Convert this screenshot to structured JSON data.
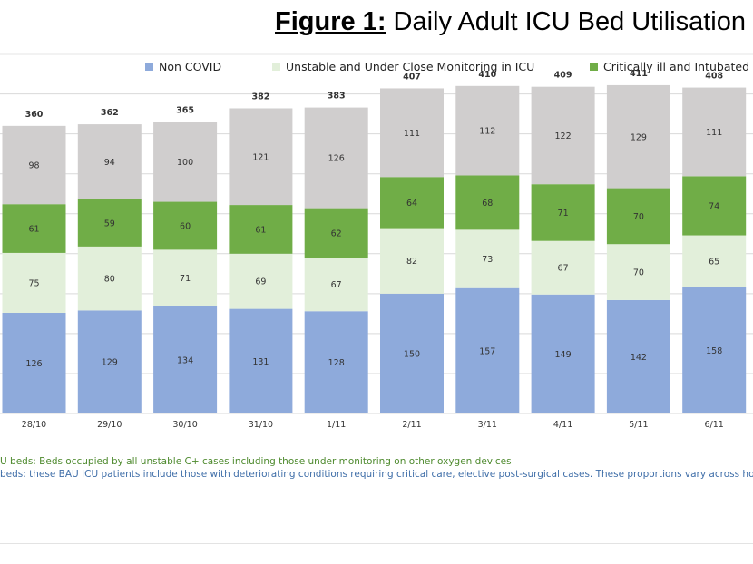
{
  "colors": {
    "non_covid": "#8eaadb",
    "unstable": "#e2efda",
    "critical": "#70ad47",
    "remaining": "#d0cece",
    "gridline": "#d9d9d9",
    "label_text": "#333333"
  },
  "chart_data": {
    "type": "bar",
    "stacked": true,
    "title_prefix": "Figure 1:",
    "title": "Daily Adult ICU Bed Utilisation",
    "legend_position": "top",
    "grid": true,
    "categories": [
      "28/10",
      "29/10",
      "30/10",
      "31/10",
      "1/11",
      "2/11",
      "3/11",
      "4/11",
      "5/11",
      "6/11"
    ],
    "series": [
      {
        "name": "Non COVID",
        "color_key": "non_covid",
        "values": [
          126,
          129,
          134,
          131,
          128,
          150,
          157,
          149,
          142,
          158
        ]
      },
      {
        "name": "Unstable and Under Close Monitoring in ICU",
        "color_key": "unstable",
        "values": [
          75,
          80,
          71,
          69,
          67,
          82,
          73,
          67,
          70,
          65
        ]
      },
      {
        "name": "Critically ill and Intubated",
        "color_key": "critical",
        "values": [
          61,
          59,
          60,
          61,
          62,
          64,
          68,
          71,
          70,
          74
        ]
      },
      {
        "name": "",
        "color_key": "remaining",
        "values": [
          98,
          94,
          100,
          121,
          126,
          111,
          112,
          122,
          129,
          111
        ]
      }
    ],
    "totals": [
      360,
      362,
      365,
      382,
      383,
      407,
      410,
      409,
      411,
      408
    ],
    "ylim": [
      0,
      420
    ]
  },
  "notes": [
    "U beds: Beds occupied by all unstable C+ cases including those under monitoring on other oxygen devices",
    "beds: these BAU ICU patients include those with deteriorating conditions requiring critical care, elective post-surgical cases. These proportions vary across hospitals"
  ]
}
